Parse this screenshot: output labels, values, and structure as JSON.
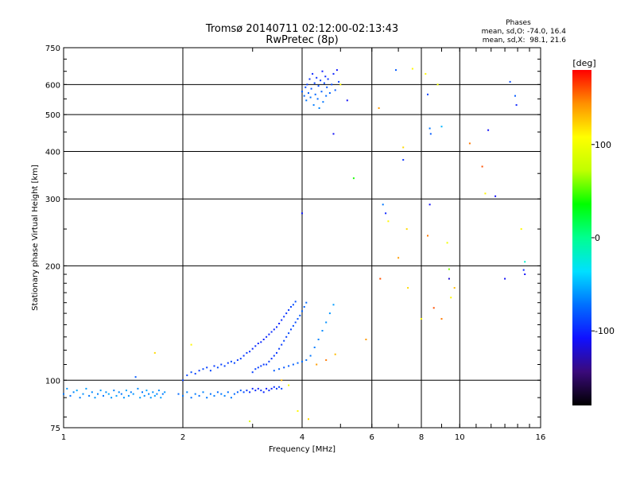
{
  "chart_data": {
    "type": "scatter",
    "title": "Tromsø 20140711 02:12:00-02:13:43",
    "subtitle": "RwPretec (8p)",
    "xlabel": "Frequency [MHz]",
    "ylabel": "Stationary phase Virtual Height [km]",
    "xscale": "log",
    "yscale": "log",
    "xlim": [
      1,
      16
    ],
    "ylim": [
      75,
      750
    ],
    "grid": true,
    "x_ticks": [
      1,
      2,
      4,
      6,
      8,
      10,
      16
    ],
    "x_tick_labels": [
      "1",
      "2",
      "4",
      "6",
      "8",
      "10",
      "16"
    ],
    "y_ticks": [
      75,
      100,
      200,
      300,
      400,
      500,
      600,
      750
    ],
    "y_tick_labels": [
      "75",
      "100",
      "200",
      "300",
      "400",
      "500",
      "600",
      "750"
    ],
    "stats": {
      "header": "Phases",
      "line1": "mean, sd,O: -74.0, 16.4",
      "line2": "mean, sd,X:  98.1, 21.6"
    },
    "colorbar": {
      "label": "[deg]",
      "range": [
        -180,
        180
      ],
      "ticks": [
        100,
        0,
        -100
      ],
      "tick_labels": [
        "100",
        "0",
        "-100"
      ],
      "colormap": [
        "#000000",
        "#3a0a7a",
        "#1010ff",
        "#0070ff",
        "#00e0ff",
        "#00ff90",
        "#00ff00",
        "#c0ff00",
        "#ffff00",
        "#ff9000",
        "#ff0000"
      ]
    },
    "series": [
      {
        "points": [
          [
            1.0,
            92,
            -70
          ],
          [
            1.02,
            95,
            -60
          ],
          [
            1.04,
            91,
            -72
          ],
          [
            1.06,
            93,
            -65
          ],
          [
            1.08,
            94,
            -55
          ],
          [
            1.1,
            90,
            -68
          ],
          [
            1.12,
            92,
            -62
          ],
          [
            1.14,
            95,
            -58
          ],
          [
            1.16,
            91,
            -70
          ],
          [
            1.18,
            93,
            -64
          ],
          [
            1.2,
            90,
            -60
          ],
          [
            1.22,
            92,
            -66
          ],
          [
            1.24,
            94,
            -58
          ],
          [
            1.26,
            91,
            -70
          ],
          [
            1.28,
            93,
            -62
          ],
          [
            1.3,
            92,
            -55
          ],
          [
            1.32,
            90,
            -60
          ],
          [
            1.34,
            94,
            -66
          ],
          [
            1.36,
            91,
            -58
          ],
          [
            1.38,
            93,
            -64
          ],
          [
            1.4,
            92,
            -70
          ],
          [
            1.42,
            90,
            -60
          ],
          [
            1.44,
            94,
            -56
          ],
          [
            1.46,
            91,
            -62
          ],
          [
            1.48,
            93,
            -68
          ],
          [
            1.5,
            92,
            -60
          ],
          [
            1.52,
            102,
            -80
          ],
          [
            1.54,
            95,
            -64
          ],
          [
            1.56,
            90,
            -58
          ],
          [
            1.58,
            93,
            -70
          ],
          [
            1.6,
            91,
            -62
          ],
          [
            1.62,
            94,
            -56
          ],
          [
            1.64,
            92,
            -66
          ],
          [
            1.66,
            90,
            -60
          ],
          [
            1.68,
            93,
            -62
          ],
          [
            1.7,
            91,
            -58
          ],
          [
            1.72,
            92,
            -66
          ],
          [
            1.74,
            94,
            -64
          ],
          [
            1.76,
            90,
            -58
          ],
          [
            1.78,
            92,
            -70
          ],
          [
            1.8,
            93,
            -60
          ]
        ]
      },
      {
        "points": [
          [
            1.95,
            92,
            -75
          ],
          [
            2.0,
            91,
            -70
          ],
          [
            2.05,
            93,
            -66
          ],
          [
            2.1,
            90,
            -72
          ],
          [
            2.15,
            92,
            -68
          ],
          [
            2.2,
            91,
            -74
          ],
          [
            2.25,
            93,
            -66
          ],
          [
            2.3,
            90,
            -70
          ],
          [
            2.35,
            92,
            -72
          ],
          [
            2.4,
            91,
            -68
          ],
          [
            2.45,
            93,
            -74
          ],
          [
            2.5,
            92,
            -70
          ],
          [
            2.55,
            91,
            -66
          ],
          [
            2.6,
            93,
            -72
          ],
          [
            2.65,
            90,
            -70
          ],
          [
            2.7,
            92,
            -75
          ],
          [
            2.75,
            93,
            -78
          ],
          [
            2.8,
            94,
            -80
          ],
          [
            2.85,
            93,
            -85
          ],
          [
            2.9,
            94,
            -92
          ],
          [
            2.95,
            93,
            -95
          ],
          [
            3.0,
            95,
            -100
          ],
          [
            3.05,
            94,
            -98
          ],
          [
            3.1,
            95,
            -102
          ],
          [
            3.15,
            94,
            -96
          ],
          [
            3.2,
            93,
            -100
          ],
          [
            3.25,
            95,
            -104
          ],
          [
            3.3,
            94,
            -98
          ],
          [
            3.35,
            95,
            -100
          ],
          [
            3.4,
            96,
            -96
          ],
          [
            3.45,
            95,
            -92
          ],
          [
            3.5,
            96,
            -90
          ],
          [
            3.55,
            95,
            -86
          ]
        ]
      },
      {
        "points": [
          [
            2.0,
            100,
            -90
          ],
          [
            2.05,
            103,
            -88
          ],
          [
            2.1,
            105,
            -85
          ],
          [
            2.15,
            104,
            -90
          ],
          [
            2.2,
            106,
            -92
          ],
          [
            2.25,
            107,
            -86
          ],
          [
            2.3,
            108,
            -90
          ],
          [
            2.35,
            106,
            -88
          ],
          [
            2.4,
            109,
            -92
          ],
          [
            2.45,
            108,
            -86
          ],
          [
            2.5,
            110,
            -90
          ],
          [
            2.55,
            109,
            -88
          ],
          [
            2.6,
            111,
            -92
          ],
          [
            2.65,
            112,
            -86
          ],
          [
            2.7,
            111,
            -88
          ],
          [
            2.75,
            113,
            -92
          ],
          [
            2.8,
            114,
            -90
          ],
          [
            2.85,
            116,
            -94
          ],
          [
            2.9,
            118,
            -92
          ],
          [
            2.95,
            119,
            -96
          ],
          [
            3.0,
            121,
            -98
          ],
          [
            3.05,
            123,
            -96
          ],
          [
            3.1,
            125,
            -100
          ],
          [
            3.15,
            126,
            -98
          ],
          [
            3.2,
            128,
            -102
          ],
          [
            3.25,
            130,
            -98
          ],
          [
            3.3,
            132,
            -100
          ],
          [
            3.35,
            134,
            -96
          ],
          [
            3.4,
            136,
            -100
          ],
          [
            3.45,
            138,
            -98
          ],
          [
            3.5,
            141,
            -102
          ],
          [
            3.55,
            144,
            -98
          ],
          [
            3.6,
            147,
            -94
          ],
          [
            3.65,
            150,
            -96
          ],
          [
            3.7,
            153,
            -92
          ],
          [
            3.75,
            156,
            -88
          ],
          [
            3.8,
            158,
            -86
          ],
          [
            3.85,
            161,
            -84
          ]
        ]
      },
      {
        "points": [
          [
            3.0,
            105,
            -90
          ],
          [
            3.05,
            107,
            -88
          ],
          [
            3.1,
            108,
            -92
          ],
          [
            3.15,
            109,
            -90
          ],
          [
            3.2,
            110,
            -94
          ],
          [
            3.25,
            110,
            -90
          ],
          [
            3.3,
            112,
            -92
          ],
          [
            3.35,
            114,
            -96
          ],
          [
            3.4,
            116,
            -92
          ],
          [
            3.45,
            118,
            -94
          ],
          [
            3.5,
            121,
            -90
          ],
          [
            3.55,
            124,
            -92
          ],
          [
            3.6,
            127,
            -88
          ],
          [
            3.65,
            130,
            -90
          ],
          [
            3.7,
            133,
            -86
          ],
          [
            3.75,
            136,
            -88
          ],
          [
            3.8,
            139,
            -84
          ],
          [
            3.85,
            142,
            -86
          ],
          [
            3.9,
            145,
            -82
          ],
          [
            3.95,
            148,
            -80
          ],
          [
            4.0,
            152,
            -78
          ],
          [
            4.05,
            156,
            -76
          ],
          [
            4.1,
            160,
            -74
          ]
        ]
      },
      {
        "points": [
          [
            3.4,
            106,
            -80
          ],
          [
            3.5,
            107,
            -78
          ],
          [
            3.6,
            108,
            -82
          ],
          [
            3.7,
            109,
            -80
          ],
          [
            3.8,
            110,
            -78
          ],
          [
            3.9,
            111,
            -76
          ],
          [
            4.0,
            112,
            -74
          ],
          [
            4.1,
            113,
            -72
          ],
          [
            4.2,
            116,
            -70
          ],
          [
            4.3,
            122,
            -68
          ],
          [
            4.4,
            128,
            -66
          ],
          [
            4.5,
            135,
            -64
          ],
          [
            4.6,
            142,
            -62
          ],
          [
            4.7,
            150,
            -60
          ],
          [
            4.8,
            158,
            -58
          ]
        ]
      },
      {
        "points": [
          [
            4.0,
            575,
            -80
          ],
          [
            4.05,
            560,
            -75
          ],
          [
            4.08,
            590,
            -85
          ],
          [
            4.1,
            545,
            -70
          ],
          [
            4.12,
            600,
            -90
          ],
          [
            4.15,
            570,
            -78
          ],
          [
            4.18,
            620,
            -95
          ],
          [
            4.2,
            555,
            -72
          ],
          [
            4.22,
            585,
            -82
          ],
          [
            4.25,
            640,
            -100
          ],
          [
            4.28,
            530,
            -68
          ],
          [
            4.3,
            605,
            -88
          ],
          [
            4.32,
            565,
            -76
          ],
          [
            4.35,
            625,
            -96
          ],
          [
            4.38,
            550,
            -74
          ],
          [
            4.4,
            595,
            -84
          ],
          [
            4.42,
            520,
            -66
          ],
          [
            4.45,
            615,
            -92
          ],
          [
            4.48,
            575,
            -78
          ],
          [
            4.5,
            650,
            -104
          ],
          [
            4.52,
            540,
            -70
          ],
          [
            4.55,
            605,
            -86
          ],
          [
            4.58,
            630,
            -98
          ],
          [
            4.6,
            560,
            -74
          ],
          [
            4.62,
            590,
            -82
          ],
          [
            4.65,
            620,
            -94
          ],
          [
            4.7,
            570,
            -76
          ],
          [
            4.75,
            600,
            -86
          ],
          [
            4.8,
            640,
            -100
          ],
          [
            4.85,
            580,
            -80
          ],
          [
            4.9,
            655,
            -106
          ],
          [
            4.95,
            610,
            -90
          ]
        ]
      },
      {
        "points": [
          [
            1.7,
            118,
            120
          ],
          [
            2.1,
            124,
            110
          ],
          [
            2.95,
            78,
            90
          ],
          [
            3.55,
            100,
            130
          ],
          [
            3.7,
            97,
            100
          ],
          [
            3.9,
            83,
            110
          ],
          [
            4.15,
            79,
            120
          ],
          [
            4.35,
            110,
            140
          ],
          [
            4.6,
            113,
            150
          ],
          [
            4.85,
            117,
            130
          ],
          [
            5.0,
            600,
            110
          ],
          [
            5.4,
            340,
            40
          ],
          [
            5.8,
            128,
            140
          ],
          [
            6.25,
            520,
            140
          ],
          [
            6.6,
            262,
            110
          ],
          [
            6.9,
            655,
            -80
          ],
          [
            7.0,
            210,
            140
          ],
          [
            7.2,
            410,
            120
          ],
          [
            7.35,
            250,
            120
          ],
          [
            7.4,
            175,
            120
          ],
          [
            7.6,
            660,
            110
          ],
          [
            8.0,
            145,
            110
          ],
          [
            8.2,
            640,
            110
          ],
          [
            8.3,
            240,
            150
          ],
          [
            8.6,
            155,
            160
          ],
          [
            8.8,
            600,
            100
          ],
          [
            9.0,
            145,
            150
          ],
          [
            9.3,
            230,
            100
          ],
          [
            9.4,
            196,
            60
          ],
          [
            9.5,
            165,
            110
          ],
          [
            9.7,
            175,
            130
          ],
          [
            10.6,
            420,
            150
          ],
          [
            11.4,
            365,
            160
          ],
          [
            11.6,
            310,
            110
          ],
          [
            14.3,
            250,
            110
          ],
          [
            14.6,
            205,
            -20
          ]
        ]
      },
      {
        "points": [
          [
            4.0,
            275,
            -105
          ],
          [
            4.8,
            445,
            -110
          ],
          [
            5.2,
            545,
            -110
          ],
          [
            6.4,
            290,
            -70
          ],
          [
            6.5,
            275,
            -100
          ],
          [
            7.2,
            380,
            -95
          ],
          [
            8.3,
            565,
            -90
          ],
          [
            8.4,
            460,
            -70
          ],
          [
            8.45,
            445,
            -80
          ],
          [
            8.4,
            290,
            -110
          ],
          [
            9.0,
            465,
            -50
          ],
          [
            9.4,
            185,
            -120
          ],
          [
            11.8,
            455,
            -110
          ],
          [
            12.3,
            305,
            -110
          ],
          [
            13.4,
            610,
            -85
          ],
          [
            13.8,
            560,
            -80
          ],
          [
            13.9,
            530,
            -100
          ],
          [
            14.5,
            195,
            -100
          ],
          [
            14.6,
            190,
            -110
          ],
          [
            13.0,
            185,
            -110
          ],
          [
            6.3,
            185,
            160
          ]
        ]
      }
    ]
  }
}
